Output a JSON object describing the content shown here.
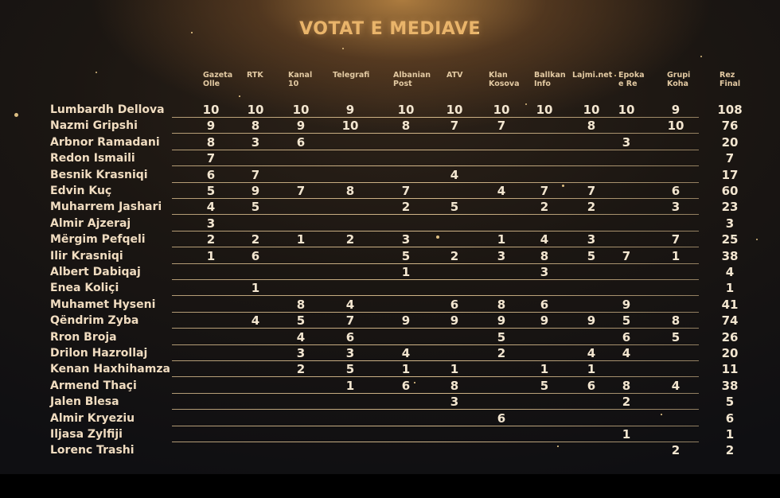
{
  "title": "VOTAT E MEDIAVE",
  "columns": [
    {
      "line1": "Gazeta",
      "line2": "Olle"
    },
    {
      "line1": "RTK",
      "line2": ""
    },
    {
      "line1": "Kanal",
      "line2": "10"
    },
    {
      "line1": "Telegrafi",
      "line2": ""
    },
    {
      "line1": "Albanian",
      "line2": "Post"
    },
    {
      "line1": "ATV",
      "line2": ""
    },
    {
      "line1": "Klan",
      "line2": "Kosova"
    },
    {
      "line1": "Ballkan",
      "line2": "Info"
    },
    {
      "line1": "Lajmi.net",
      "line2": ""
    },
    {
      "line1": "Epoka",
      "line2": "e Re"
    },
    {
      "line1": "Grupi",
      "line2": "Koha"
    },
    {
      "line1": "Rez",
      "line2": "Final"
    }
  ],
  "rows": [
    {
      "name": "Lumbardh Dellova",
      "votes": [
        "10",
        "10",
        "10",
        "9",
        "10",
        "10",
        "10",
        "10",
        "10",
        "10",
        "9"
      ],
      "total": "108"
    },
    {
      "name": "Nazmi Gripshi",
      "votes": [
        "9",
        "8",
        "9",
        "10",
        "8",
        "7",
        "7",
        "",
        "8",
        "",
        "10"
      ],
      "total": "76"
    },
    {
      "name": "Arbnor Ramadani",
      "votes": [
        "8",
        "3",
        "6",
        "",
        "",
        "",
        "",
        "",
        "",
        "3",
        ""
      ],
      "total": "20"
    },
    {
      "name": "Redon Ismaili",
      "votes": [
        "7",
        "",
        "",
        "",
        "",
        "",
        "",
        "",
        "",
        "",
        ""
      ],
      "total": "7"
    },
    {
      "name": "Besnik Krasniqi",
      "votes": [
        "6",
        "7",
        "",
        "",
        "",
        "4",
        "",
        "",
        "",
        "",
        ""
      ],
      "total": "17"
    },
    {
      "name": "Edvin Kuç",
      "votes": [
        "5",
        "9",
        "7",
        "8",
        "7",
        "",
        "4",
        "7",
        "7",
        "",
        "6"
      ],
      "total": "60"
    },
    {
      "name": "Muharrem Jashari",
      "votes": [
        "4",
        "5",
        "",
        "",
        "2",
        "5",
        "",
        "2",
        "2",
        "",
        "3"
      ],
      "total": "23"
    },
    {
      "name": "Almir Ajzeraj",
      "votes": [
        "3",
        "",
        "",
        "",
        "",
        "",
        "",
        "",
        "",
        "",
        ""
      ],
      "total": "3"
    },
    {
      "name": "Mërgim Pefqeli",
      "votes": [
        "2",
        "2",
        "1",
        "2",
        "3",
        "",
        "1",
        "4",
        "3",
        "",
        "7"
      ],
      "total": "25"
    },
    {
      "name": "Ilir Krasniqi",
      "votes": [
        "1",
        "6",
        "",
        "",
        "5",
        "2",
        "3",
        "8",
        "5",
        "7",
        "1"
      ],
      "total": "38"
    },
    {
      "name": "Albert Dabiqaj",
      "votes": [
        "",
        "",
        "",
        "",
        "1",
        "",
        "",
        "3",
        "",
        "",
        ""
      ],
      "total": "4"
    },
    {
      "name": "Enea Koliçi",
      "votes": [
        "",
        "1",
        "",
        "",
        "",
        "",
        "",
        "",
        "",
        "",
        ""
      ],
      "total": "1"
    },
    {
      "name": "Muhamet Hyseni",
      "votes": [
        "",
        "",
        "8",
        "4",
        "",
        "6",
        "8",
        "6",
        "",
        "9",
        ""
      ],
      "total": "41"
    },
    {
      "name": "Qëndrim Zyba",
      "votes": [
        "",
        "4",
        "5",
        "7",
        "9",
        "9",
        "9",
        "9",
        "9",
        "5",
        "8"
      ],
      "total": "74"
    },
    {
      "name": "Rron Broja",
      "votes": [
        "",
        "",
        "4",
        "6",
        "",
        "",
        "5",
        "",
        "",
        "6",
        "5"
      ],
      "total": "26"
    },
    {
      "name": "Drilon Hazrollaj",
      "votes": [
        "",
        "",
        "3",
        "3",
        "4",
        "",
        "2",
        "",
        "4",
        "4",
        ""
      ],
      "total": "20"
    },
    {
      "name": "Kenan Haxhihamza",
      "votes": [
        "",
        "",
        "2",
        "5",
        "1",
        "1",
        "",
        "1",
        "1",
        "",
        ""
      ],
      "total": "11"
    },
    {
      "name": "Armend Thaçi",
      "votes": [
        "",
        "",
        "",
        "1",
        "6",
        "8",
        "",
        "5",
        "6",
        "8",
        "4"
      ],
      "total": "38"
    },
    {
      "name": "Jalen Blesa",
      "votes": [
        "",
        "",
        "",
        "",
        "",
        "3",
        "",
        "",
        "",
        "2",
        ""
      ],
      "total": "5"
    },
    {
      "name": "Almir Kryeziu",
      "votes": [
        "",
        "",
        "",
        "",
        "",
        "",
        "6",
        "",
        "",
        "",
        ""
      ],
      "total": "6"
    },
    {
      "name": "Iljasa Zylfiji",
      "votes": [
        "",
        "",
        "",
        "",
        "",
        "",
        "",
        "",
        "",
        "1",
        ""
      ],
      "total": "1"
    },
    {
      "name": "Lorenc Trashi",
      "votes": [
        "",
        "",
        "",
        "",
        "",
        "",
        "",
        "",
        "",
        "",
        "2"
      ],
      "total": "2"
    }
  ]
}
